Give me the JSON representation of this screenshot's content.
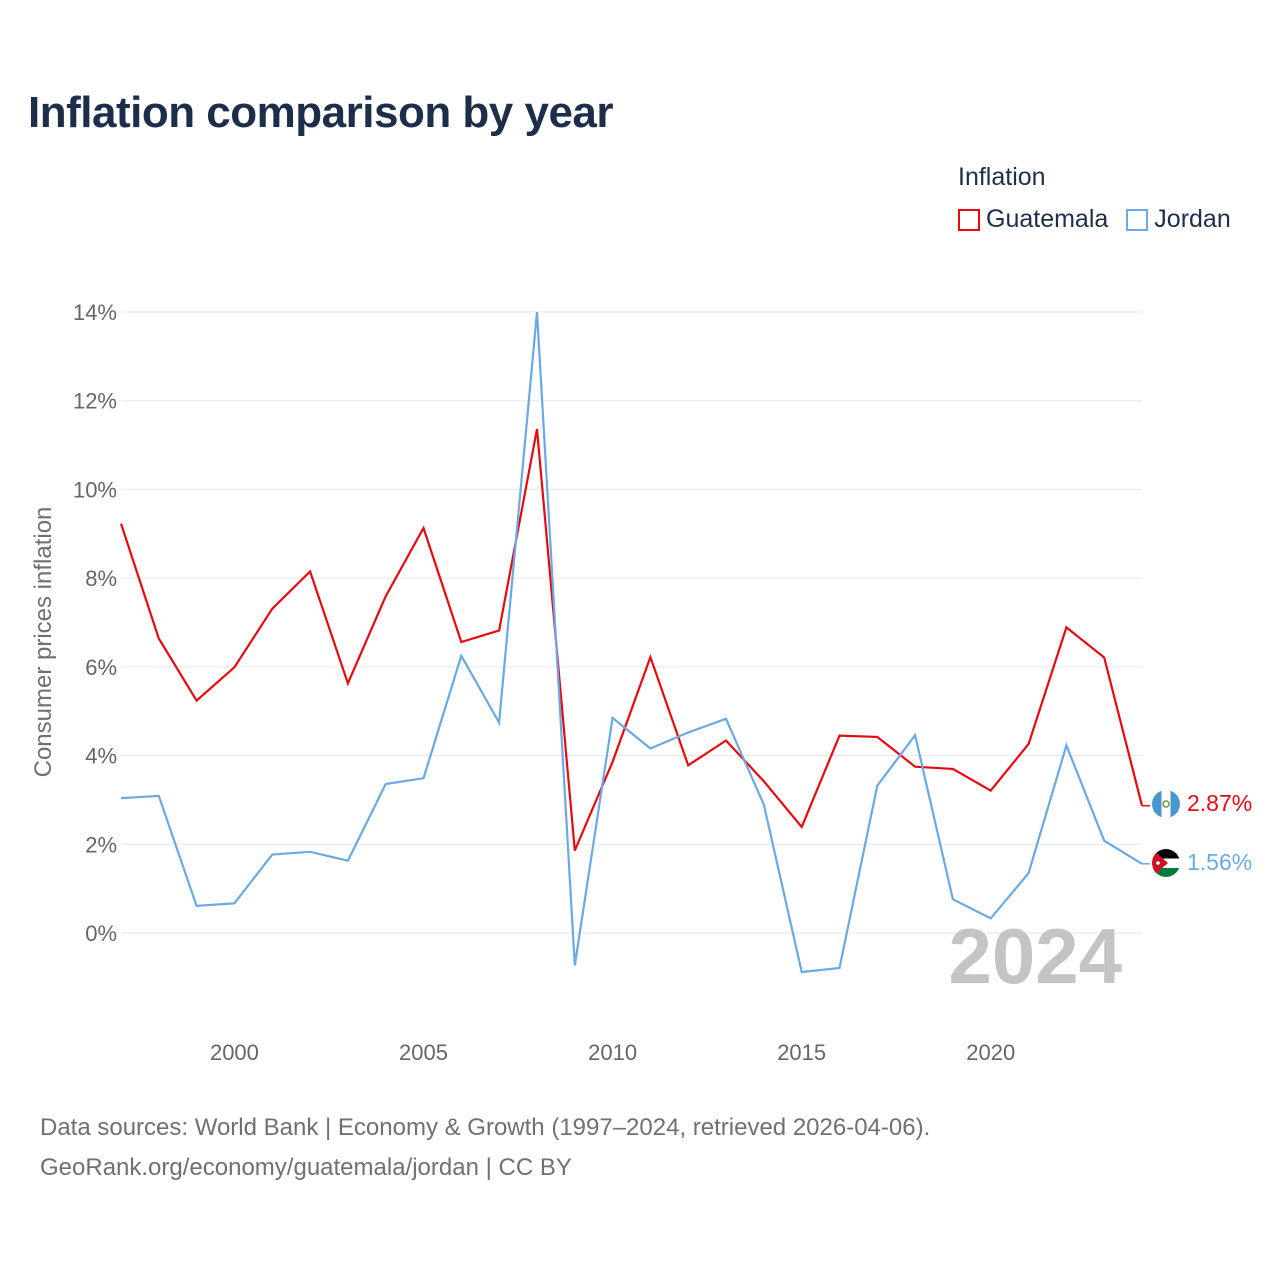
{
  "title": "Inflation comparison by year",
  "legend": {
    "title": "Inflation",
    "items": [
      {
        "label": "Guatemala",
        "color": "#e8090f"
      },
      {
        "label": "Jordan",
        "color": "#6aaae4"
      }
    ]
  },
  "footer": {
    "line1": "Data sources: World Bank | Economy & Growth (1997–2024, retrieved 2026-04-06).",
    "line2": "GeoRank.org/economy/guatemala/jordan | CC BY"
  },
  "chart_data": {
    "type": "line",
    "title": "Inflation comparison by year",
    "ylabel": "Consumer prices inflation",
    "xlabel": "",
    "x": [
      1997,
      1998,
      1999,
      2000,
      2001,
      2002,
      2003,
      2004,
      2005,
      2006,
      2007,
      2008,
      2009,
      2010,
      2011,
      2012,
      2013,
      2014,
      2015,
      2016,
      2017,
      2018,
      2019,
      2020,
      2021,
      2022,
      2023,
      2024
    ],
    "xlim": [
      1997,
      2024
    ],
    "ylim": [
      -1.8,
      14
    ],
    "xticks": [
      2000,
      2005,
      2010,
      2015,
      2020
    ],
    "xtick_labels": [
      "2000",
      "2005",
      "2010",
      "2015",
      "2020"
    ],
    "yticks": [
      0,
      2,
      4,
      6,
      8,
      10,
      12,
      14
    ],
    "ytick_labels": [
      "0%",
      "2%",
      "4%",
      "6%",
      "8%",
      "10%",
      "12%",
      "14%"
    ],
    "grid": true,
    "current_year_label": "2024",
    "series": [
      {
        "name": "Guatemala",
        "color": "#e8090f",
        "end_label": "2.87%",
        "values": [
          9.23,
          6.64,
          5.24,
          5.99,
          7.31,
          8.15,
          5.63,
          7.59,
          9.13,
          6.56,
          6.82,
          11.36,
          1.86,
          3.86,
          6.22,
          3.78,
          4.34,
          3.42,
          2.39,
          4.45,
          4.42,
          3.75,
          3.7,
          3.21,
          4.26,
          6.89,
          6.21,
          2.87
        ]
      },
      {
        "name": "Jordan",
        "color": "#6aaae4",
        "end_label": "1.56%",
        "values": [
          3.04,
          3.09,
          0.61,
          0.67,
          1.77,
          1.83,
          1.63,
          3.36,
          3.49,
          6.25,
          4.74,
          14.0,
          -0.73,
          4.85,
          4.16,
          4.52,
          4.83,
          2.89,
          -0.88,
          -0.79,
          3.32,
          4.46,
          0.76,
          0.33,
          1.35,
          4.23,
          2.08,
          1.56
        ]
      }
    ]
  }
}
